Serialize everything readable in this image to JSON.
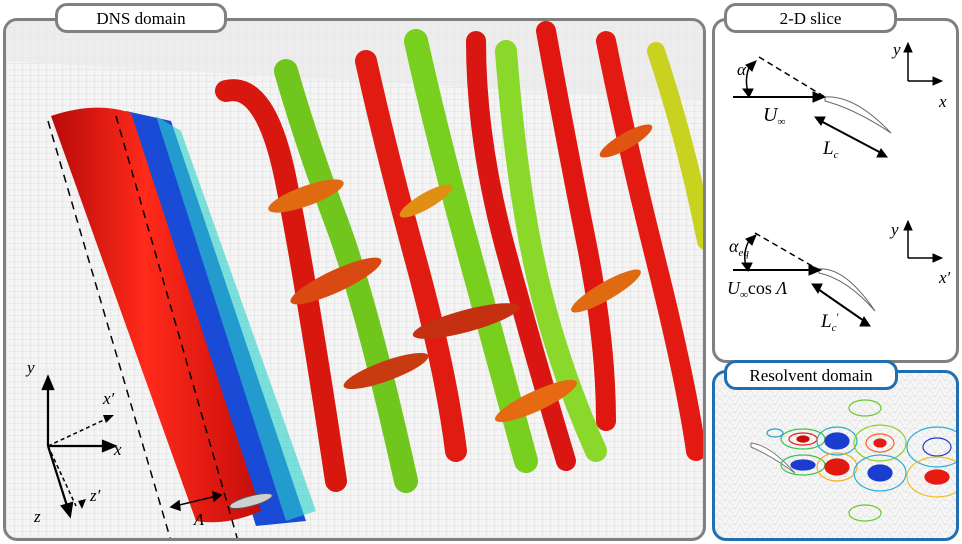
{
  "panels": {
    "dns": {
      "title": "DNS domain"
    },
    "slice": {
      "title": "2-D slice"
    },
    "resolvent": {
      "title": "Resolvent domain"
    }
  },
  "dns_axes": {
    "y": "y",
    "x": "x",
    "x_prime": "x′",
    "z": "z",
    "z_prime": "z′",
    "sweep": "Λ"
  },
  "slice_top": {
    "alpha": "α",
    "u": "U",
    "u_sub": "∞",
    "l": "L",
    "l_sub": "c",
    "axis_y": "y",
    "axis_x": "x"
  },
  "slice_bottom": {
    "alpha": "α",
    "alpha_sub": "eq",
    "u": "U",
    "u_sub": "∞",
    "u_suffix": "cos Λ",
    "l": "L",
    "l_sub": "c",
    "l_prime": "′",
    "axis_y": "y",
    "axis_x": "x′"
  },
  "colors": {
    "red": "#e8130f",
    "green": "#7fd41c",
    "blue": "#1a4bd6",
    "panel_border": "#808080",
    "resolvent_border": "#1f6fb2"
  }
}
